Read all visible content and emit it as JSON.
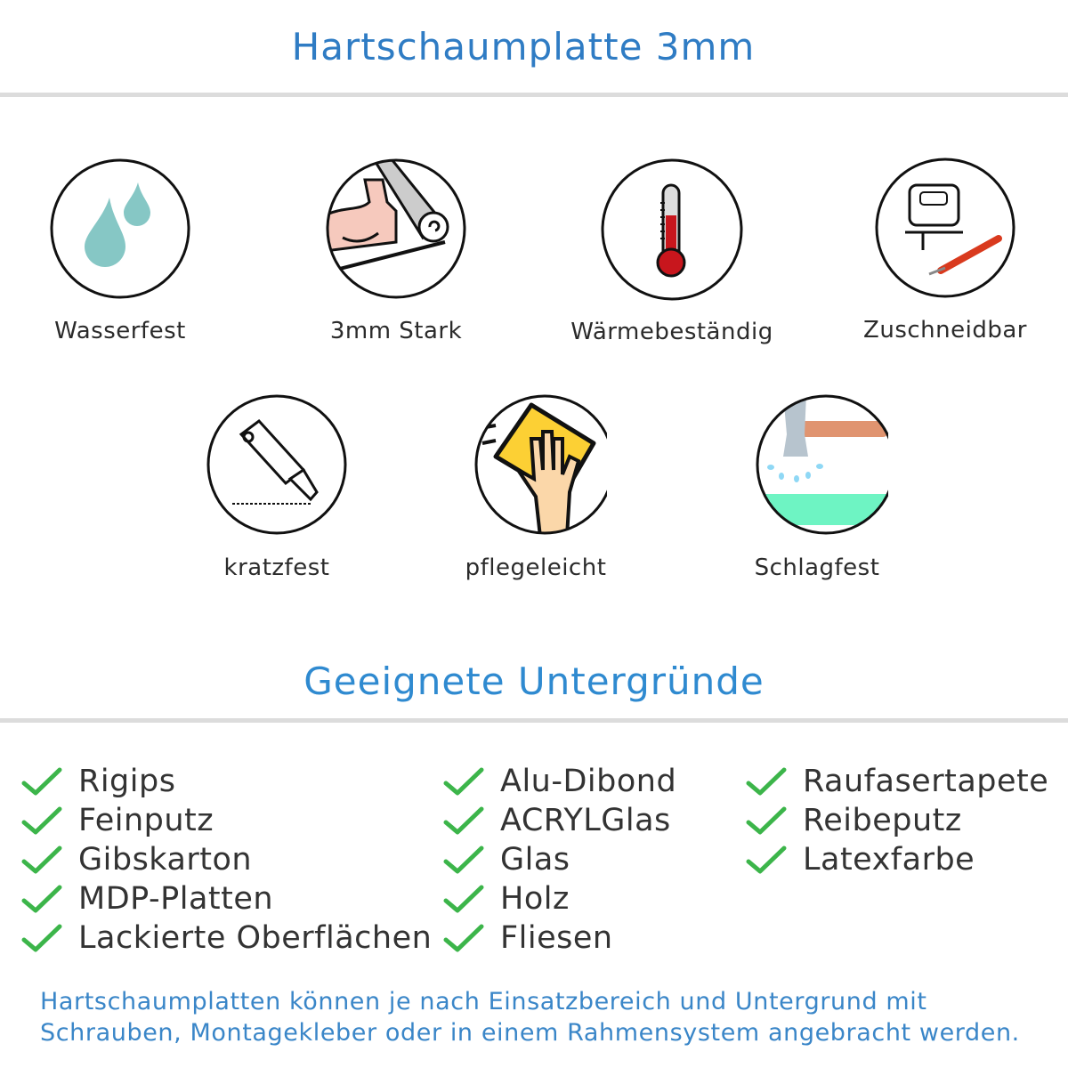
{
  "header": {
    "title": "Hartschaumplatte 3mm"
  },
  "features": [
    {
      "label": "Wasserfest",
      "icon": "water-drops-icon"
    },
    {
      "label": "3mm Stark",
      "icon": "strong-arm-icon"
    },
    {
      "label": "Wärmebeständig",
      "icon": "thermometer-icon"
    },
    {
      "label": "Zuschneidbar",
      "icon": "jigsaw-cutter-icon"
    },
    {
      "label": "kratzfest",
      "icon": "cutter-knife-icon"
    },
    {
      "label": "pflegeleicht",
      "icon": "cleaning-hand-icon"
    },
    {
      "label": "Schlagfest",
      "icon": "hammer-icon"
    }
  ],
  "surfaces": {
    "title": "Geeignete Untergründe",
    "columns": [
      [
        "Rigips",
        "Feinputz",
        "Gibskarton",
        "MDP-Platten",
        "Lackierte Oberflächen"
      ],
      [
        "Alu-Dibond",
        "ACRYLGlas",
        "Glas",
        "Holz",
        "Fliesen"
      ],
      [
        "Raufasertapete",
        "Reibeputz",
        "Latexfarbe"
      ]
    ]
  },
  "footer": {
    "line1": "Hartschaumplatten können je nach Einsatzbereich und Untergrund mit",
    "line2": "Schrauben, Montagekleber oder in einem Rahmensystem angebracht werden."
  },
  "colors": {
    "title": "#2f7cc4",
    "check": "#3cb54a",
    "footer": "#3a86c8"
  }
}
